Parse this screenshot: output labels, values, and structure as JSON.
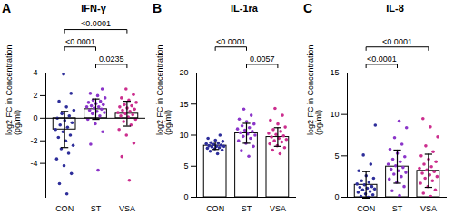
{
  "chart_data": [
    {
      "type": "bar",
      "panel_label": "A",
      "title": "IFN-γ",
      "y_label": "log2 FC in Concentration\n(pg/ml)",
      "categories": [
        "CON",
        "ST",
        "VSA"
      ],
      "values": [
        -1.0,
        0.8,
        0.4
      ],
      "errors": [
        1.6,
        0.9,
        1.1
      ],
      "colors": [
        "#2e2e9a",
        "#8b35c9",
        "#cc2e8e"
      ],
      "points": [
        [
          -6.7,
          -5.8,
          -4.9,
          -4.2,
          -3.6,
          -3.1,
          -2.7,
          -2.4,
          -2.0,
          -1.7,
          -1.5,
          -1.2,
          -1.0,
          -0.8,
          -0.6,
          -0.4,
          -0.2,
          0.0,
          0.2,
          0.4,
          0.7,
          1.0,
          1.5,
          2.2,
          3.9
        ],
        [
          -4.6,
          -2.3,
          -1.2,
          -0.5,
          -0.1,
          0.2,
          0.4,
          0.5,
          0.6,
          0.7,
          0.8,
          0.9,
          1.0,
          1.0,
          1.1,
          1.2,
          1.3,
          1.4,
          1.5,
          1.6,
          1.8,
          2.0,
          2.2,
          2.6
        ],
        [
          -5.5,
          -3.4,
          -2.2,
          -1.5,
          -1.0,
          -0.6,
          -0.3,
          -0.1,
          0.1,
          0.2,
          0.3,
          0.4,
          0.5,
          0.6,
          0.7,
          0.8,
          0.9,
          1.0,
          1.1,
          1.2,
          1.4,
          1.6,
          1.8,
          2.1,
          2.6
        ]
      ],
      "ylim": [
        -7,
        4
      ],
      "yticks": [
        -4,
        -2,
        0,
        2,
        4
      ],
      "comparisons": [
        {
          "groups": [
            "ST",
            "VSA"
          ],
          "label": "0.0235"
        },
        {
          "groups": [
            "CON",
            "ST"
          ],
          "label": "<0.0001"
        },
        {
          "groups": [
            "CON",
            "VSA"
          ],
          "label": "<0.0001"
        }
      ]
    },
    {
      "type": "bar",
      "panel_label": "B",
      "title": "IL-1ra",
      "y_label": "log2 FC in Concentration\n(pg/ml)",
      "categories": [
        "CON",
        "ST",
        "VSA"
      ],
      "values": [
        8.3,
        10.3,
        9.7
      ],
      "errors": [
        0.6,
        1.6,
        1.5
      ],
      "colors": [
        "#2e2e9a",
        "#8b35c9",
        "#cc2e8e"
      ],
      "points": [
        [
          7.0,
          7.4,
          7.6,
          7.8,
          7.9,
          8.0,
          8.1,
          8.2,
          8.2,
          8.3,
          8.4,
          8.5,
          8.6,
          8.7,
          8.8,
          9.0,
          9.2,
          9.5,
          10.0
        ],
        [
          6.6,
          7.5,
          8.2,
          8.7,
          9.1,
          9.5,
          9.8,
          10.0,
          10.2,
          10.4,
          10.6,
          10.8,
          11.0,
          11.2,
          11.5,
          11.8,
          12.2,
          12.6,
          13.2,
          14.2
        ],
        [
          7.0,
          7.6,
          8.0,
          8.3,
          8.6,
          8.9,
          9.1,
          9.3,
          9.5,
          9.7,
          9.9,
          10.1,
          10.3,
          10.6,
          10.9,
          11.3,
          11.8,
          12.4,
          13.2,
          14.3
        ]
      ],
      "ylim": [
        0,
        20
      ],
      "yticks": [
        0,
        5,
        10,
        15,
        20
      ],
      "comparisons": [
        {
          "groups": [
            "ST",
            "VSA"
          ],
          "label": "0.0057"
        },
        {
          "groups": [
            "CON",
            "ST"
          ],
          "label": "<0.0001"
        }
      ]
    },
    {
      "type": "bar",
      "panel_label": "C",
      "title": "IL-8",
      "y_label": "log2 FC in Concentration\n(pg/ml)",
      "categories": [
        "CON",
        "ST",
        "VSA"
      ],
      "values": [
        1.5,
        3.7,
        3.2
      ],
      "errors": [
        1.6,
        2.0,
        2.0
      ],
      "colors": [
        "#2e2e9a",
        "#8b35c9",
        "#cc2e8e"
      ],
      "points": [
        [
          0.0,
          0.1,
          0.3,
          0.4,
          0.6,
          0.7,
          0.9,
          1.0,
          1.1,
          1.2,
          1.3,
          1.5,
          1.6,
          1.8,
          2.0,
          2.3,
          2.6,
          3.2,
          4.0,
          5.1,
          8.7
        ],
        [
          0.2,
          0.8,
          1.3,
          1.8,
          2.2,
          2.5,
          2.8,
          3.0,
          3.2,
          3.4,
          3.6,
          3.8,
          4.0,
          4.3,
          4.6,
          4.9,
          5.3,
          5.8,
          6.4,
          7.2,
          8.4,
          9.2
        ],
        [
          0.1,
          0.5,
          0.9,
          1.3,
          1.7,
          2.0,
          2.3,
          2.5,
          2.7,
          2.9,
          3.1,
          3.3,
          3.5,
          3.7,
          4.0,
          4.3,
          4.6,
          5.0,
          5.5,
          6.2,
          7.3,
          8.5,
          9.5
        ]
      ],
      "ylim": [
        0,
        15
      ],
      "yticks": [
        0,
        5,
        10,
        15
      ],
      "comparisons": [
        {
          "groups": [
            "CON",
            "ST"
          ],
          "label": "<0.0001"
        },
        {
          "groups": [
            "CON",
            "VSA"
          ],
          "label": "<0.0001"
        }
      ]
    }
  ]
}
